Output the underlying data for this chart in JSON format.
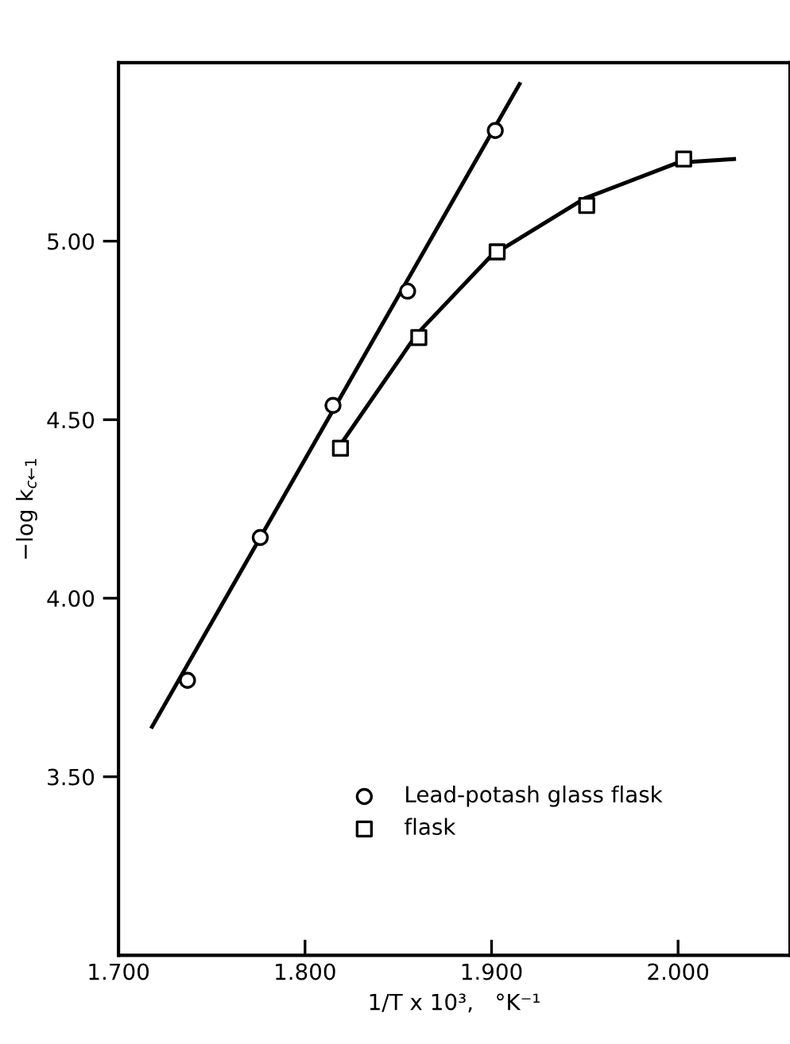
{
  "chart_data": {
    "type": "scatter",
    "xlabel": "1/T x 10³,   °K⁻¹",
    "ylabel": "−log k$_{c←1}$",
    "xlim": [
      1.7,
      2.06
    ],
    "ylim": [
      3.0,
      5.5
    ],
    "xticks": [
      {
        "value": 1.7,
        "label": "1.700"
      },
      {
        "value": 1.8,
        "label": "1.800"
      },
      {
        "value": 1.9,
        "label": "1.900"
      },
      {
        "value": 2.0,
        "label": "2.000"
      }
    ],
    "yticks": [
      {
        "value": 3.5,
        "label": "3.50"
      },
      {
        "value": 4.0,
        "label": "4.00"
      },
      {
        "value": 4.5,
        "label": "4.50"
      },
      {
        "value": 5.0,
        "label": "5.00"
      }
    ],
    "grid": false,
    "legend": "bottom right",
    "series": [
      {
        "name": "Lead-potash glass flask",
        "marker": "circle",
        "color": "#000000",
        "x": [
          1.737,
          1.776,
          1.815,
          1.855,
          1.902
        ],
        "values": [
          3.77,
          4.17,
          4.54,
          4.86,
          5.31
        ]
      },
      {
        "name": "flask",
        "marker": "square",
        "color": "#000000",
        "x": [
          1.819,
          1.861,
          1.903,
          1.951,
          2.003
        ],
        "values": [
          4.42,
          4.73,
          4.97,
          5.1,
          5.23
        ]
      },
      {
        "type": "line",
        "marker": "none",
        "color": "#000000",
        "x": [
          1.718,
          1.915
        ],
        "values": [
          3.64,
          5.44
        ]
      },
      {
        "type": "line",
        "marker": "none",
        "color": "#000000",
        "x": [
          1.819,
          1.86,
          1.9,
          1.95,
          2.0,
          2.03
        ],
        "values": [
          4.43,
          4.74,
          4.96,
          5.12,
          5.22,
          5.23
        ]
      }
    ]
  }
}
